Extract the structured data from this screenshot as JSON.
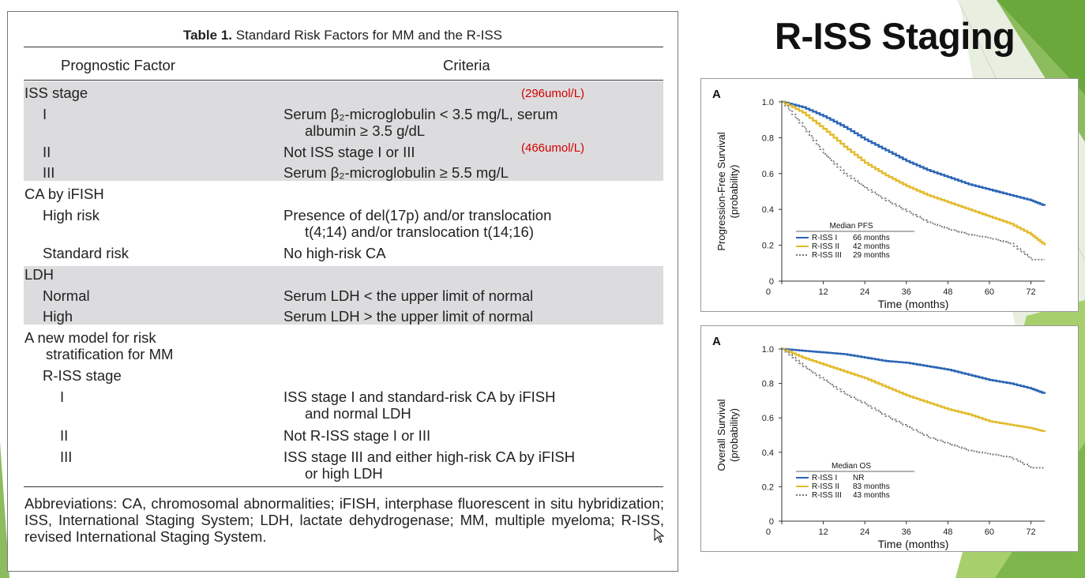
{
  "slide": {
    "title": "R-ISS Staging"
  },
  "table": {
    "title_bold": "Table 1.",
    "title_rest": " Standard Risk Factors for MM and the R-ISS",
    "col_factor": "Prognostic Factor",
    "col_criteria": "Criteria",
    "rows": [
      {
        "factor": "ISS stage",
        "criteria1": "",
        "criteria2": ""
      },
      {
        "factor": "I",
        "criteria1": "Serum β₂-microglobulin < 3.5 mg/L, serum",
        "criteria2": "albumin ≥ 3.5 g/dL"
      },
      {
        "factor": "II",
        "criteria1": "Not ISS stage I or III",
        "criteria2": ""
      },
      {
        "factor": "III",
        "criteria1": "Serum β₂-microglobulin ≥ 5.5 mg/L",
        "criteria2": ""
      },
      {
        "factor": "CA by iFISH",
        "criteria1": "",
        "criteria2": ""
      },
      {
        "factor": "High risk",
        "criteria1": "Presence of del(17p) and/or translocation",
        "criteria2": "t(4;14) and/or translocation t(14;16)"
      },
      {
        "factor": "Standard risk",
        "criteria1": "No high-risk CA",
        "criteria2": ""
      },
      {
        "factor": "LDH",
        "criteria1": "",
        "criteria2": ""
      },
      {
        "factor": "Normal",
        "criteria1": "Serum LDH < the upper limit of normal",
        "criteria2": ""
      },
      {
        "factor": "High",
        "criteria1": "Serum LDH > the upper limit of normal",
        "criteria2": ""
      },
      {
        "factor": "A new model for risk",
        "factor2": "stratification for MM",
        "criteria1": "",
        "criteria2": ""
      },
      {
        "factor": "R-ISS stage",
        "criteria1": "",
        "criteria2": ""
      },
      {
        "factor": "I",
        "criteria1": "ISS stage I and standard-risk CA by iFISH",
        "criteria2": "and normal LDH"
      },
      {
        "factor": "II",
        "criteria1": "Not R-ISS stage I or III",
        "criteria2": ""
      },
      {
        "factor": "III",
        "criteria1": "ISS stage III and either high-risk CA by iFISH",
        "criteria2": "or high LDH"
      }
    ],
    "red_notes": [
      "(296umol/L)",
      "(466umol/L)"
    ],
    "abbreviations": "Abbreviations: CA, chromosomal abnormalities; iFISH, interphase fluorescent in situ hybridization; ISS, International Staging System; LDH, lactate dehydrogenase; MM, multiple myeloma; R-ISS, revised International Staging System."
  },
  "colors": {
    "r_iss_1": "#2a64b4",
    "r_iss_2": "#e2bb2c",
    "r_iss_3": "#777777",
    "accent_green": "#6aa83c"
  },
  "chart_data": [
    {
      "type": "line",
      "panel_label": "A",
      "xlabel": "Time (months)",
      "ylabel": "Progression-Free Survival\n(probability)",
      "xticks": [
        0,
        12,
        24,
        36,
        48,
        60,
        72
      ],
      "yticks": [
        0,
        0.2,
        0.4,
        0.6,
        0.8,
        1.0
      ],
      "ylim": [
        0,
        1.0
      ],
      "xlim": [
        0,
        76
      ],
      "legend_title": "Median PFS",
      "legend_position": "bottom-left",
      "series": [
        {
          "name": "R-ISS I",
          "median": "66 months",
          "style": "solid",
          "x": [
            0,
            6,
            12,
            18,
            24,
            30,
            36,
            42,
            48,
            54,
            60,
            66,
            72,
            76
          ],
          "y": [
            1.0,
            0.97,
            0.92,
            0.86,
            0.79,
            0.73,
            0.67,
            0.62,
            0.58,
            0.54,
            0.51,
            0.48,
            0.45,
            0.42
          ]
        },
        {
          "name": "R-ISS II",
          "median": "42 months",
          "style": "solid",
          "x": [
            0,
            6,
            12,
            18,
            24,
            30,
            36,
            42,
            48,
            54,
            60,
            66,
            72,
            76
          ],
          "y": [
            1.0,
            0.94,
            0.85,
            0.75,
            0.66,
            0.59,
            0.53,
            0.48,
            0.44,
            0.4,
            0.36,
            0.32,
            0.26,
            0.2
          ]
        },
        {
          "name": "R-ISS III",
          "median": "29 months",
          "style": "dashed",
          "x": [
            0,
            6,
            12,
            18,
            24,
            30,
            36,
            42,
            48,
            54,
            60,
            66,
            72,
            76
          ],
          "y": [
            1.0,
            0.86,
            0.71,
            0.6,
            0.52,
            0.45,
            0.39,
            0.33,
            0.29,
            0.26,
            0.24,
            0.21,
            0.12,
            0.12
          ]
        }
      ]
    },
    {
      "type": "line",
      "panel_label": "A",
      "xlabel": "Time (months)",
      "ylabel": "Overall Survival\n(probability)",
      "xticks": [
        0,
        12,
        24,
        36,
        48,
        60,
        72
      ],
      "yticks": [
        0,
        0.2,
        0.4,
        0.6,
        0.8,
        1.0
      ],
      "ylim": [
        0,
        1.0
      ],
      "xlim": [
        0,
        76
      ],
      "legend_title": "Median OS",
      "legend_position": "bottom-left",
      "series": [
        {
          "name": "R-ISS I",
          "median": "NR",
          "style": "solid",
          "x": [
            0,
            6,
            12,
            18,
            24,
            30,
            36,
            42,
            48,
            54,
            60,
            66,
            72,
            76
          ],
          "y": [
            1.0,
            0.99,
            0.98,
            0.97,
            0.95,
            0.93,
            0.92,
            0.9,
            0.88,
            0.85,
            0.82,
            0.8,
            0.77,
            0.74
          ]
        },
        {
          "name": "R-ISS II",
          "median": "83 months",
          "style": "solid",
          "x": [
            0,
            6,
            12,
            18,
            24,
            30,
            36,
            42,
            48,
            54,
            60,
            66,
            72,
            76
          ],
          "y": [
            1.0,
            0.95,
            0.91,
            0.87,
            0.83,
            0.78,
            0.73,
            0.69,
            0.65,
            0.62,
            0.58,
            0.56,
            0.54,
            0.52
          ]
        },
        {
          "name": "R-ISS III",
          "median": "43 months",
          "style": "dashed",
          "x": [
            0,
            6,
            12,
            18,
            24,
            30,
            36,
            42,
            48,
            54,
            60,
            66,
            72,
            76
          ],
          "y": [
            1.0,
            0.9,
            0.82,
            0.74,
            0.68,
            0.61,
            0.55,
            0.49,
            0.45,
            0.41,
            0.39,
            0.37,
            0.31,
            0.31
          ]
        }
      ]
    }
  ]
}
